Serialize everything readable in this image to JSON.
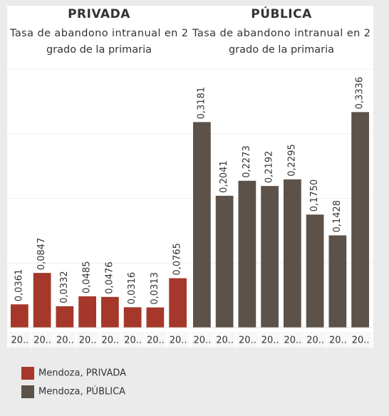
{
  "chart_data": [
    {
      "type": "bar",
      "title": "PRIVADA",
      "subtitle": [
        "Tasa de abandono intranual en 2",
        "grado de la primaria"
      ],
      "categories": [
        "20..",
        "20..",
        "20..",
        "20..",
        "20..",
        "20..",
        "20..",
        "20.."
      ],
      "values": [
        0.0361,
        0.0847,
        0.0332,
        0.0485,
        0.0476,
        0.0316,
        0.0313,
        0.0765
      ],
      "value_labels": [
        "0,0361",
        "0,0847",
        "0,0332",
        "0,0485",
        "0,0476",
        "0,0316",
        "0,0313",
        "0,0765"
      ],
      "color": "#a5382b",
      "ylim": [
        0,
        0.41
      ],
      "yticks": [
        0,
        0.1,
        0.2,
        0.3,
        0.4
      ],
      "grid": true,
      "legend_label": "Mendoza, PRIVADA"
    },
    {
      "type": "bar",
      "title": "PÚBLICA",
      "subtitle": [
        "Tasa de abandono intranual en 2",
        "grado de la primaria"
      ],
      "categories": [
        "20..",
        "20..",
        "20..",
        "20..",
        "20..",
        "20..",
        "20..",
        "20.."
      ],
      "values": [
        0.3181,
        0.2041,
        0.2273,
        0.2192,
        0.2295,
        0.175,
        0.1428,
        0.3336
      ],
      "value_labels": [
        "0,3181",
        "0,2041",
        "0,2273",
        "0,2192",
        "0,2295",
        "0,1750",
        "0,1428",
        "0,3336"
      ],
      "color": "#5c5249",
      "ylim": [
        0,
        0.41
      ],
      "yticks": [
        0,
        0.1,
        0.2,
        0.3,
        0.4
      ],
      "grid": true,
      "legend_label": "Mendoza, PÚBLICA"
    }
  ]
}
